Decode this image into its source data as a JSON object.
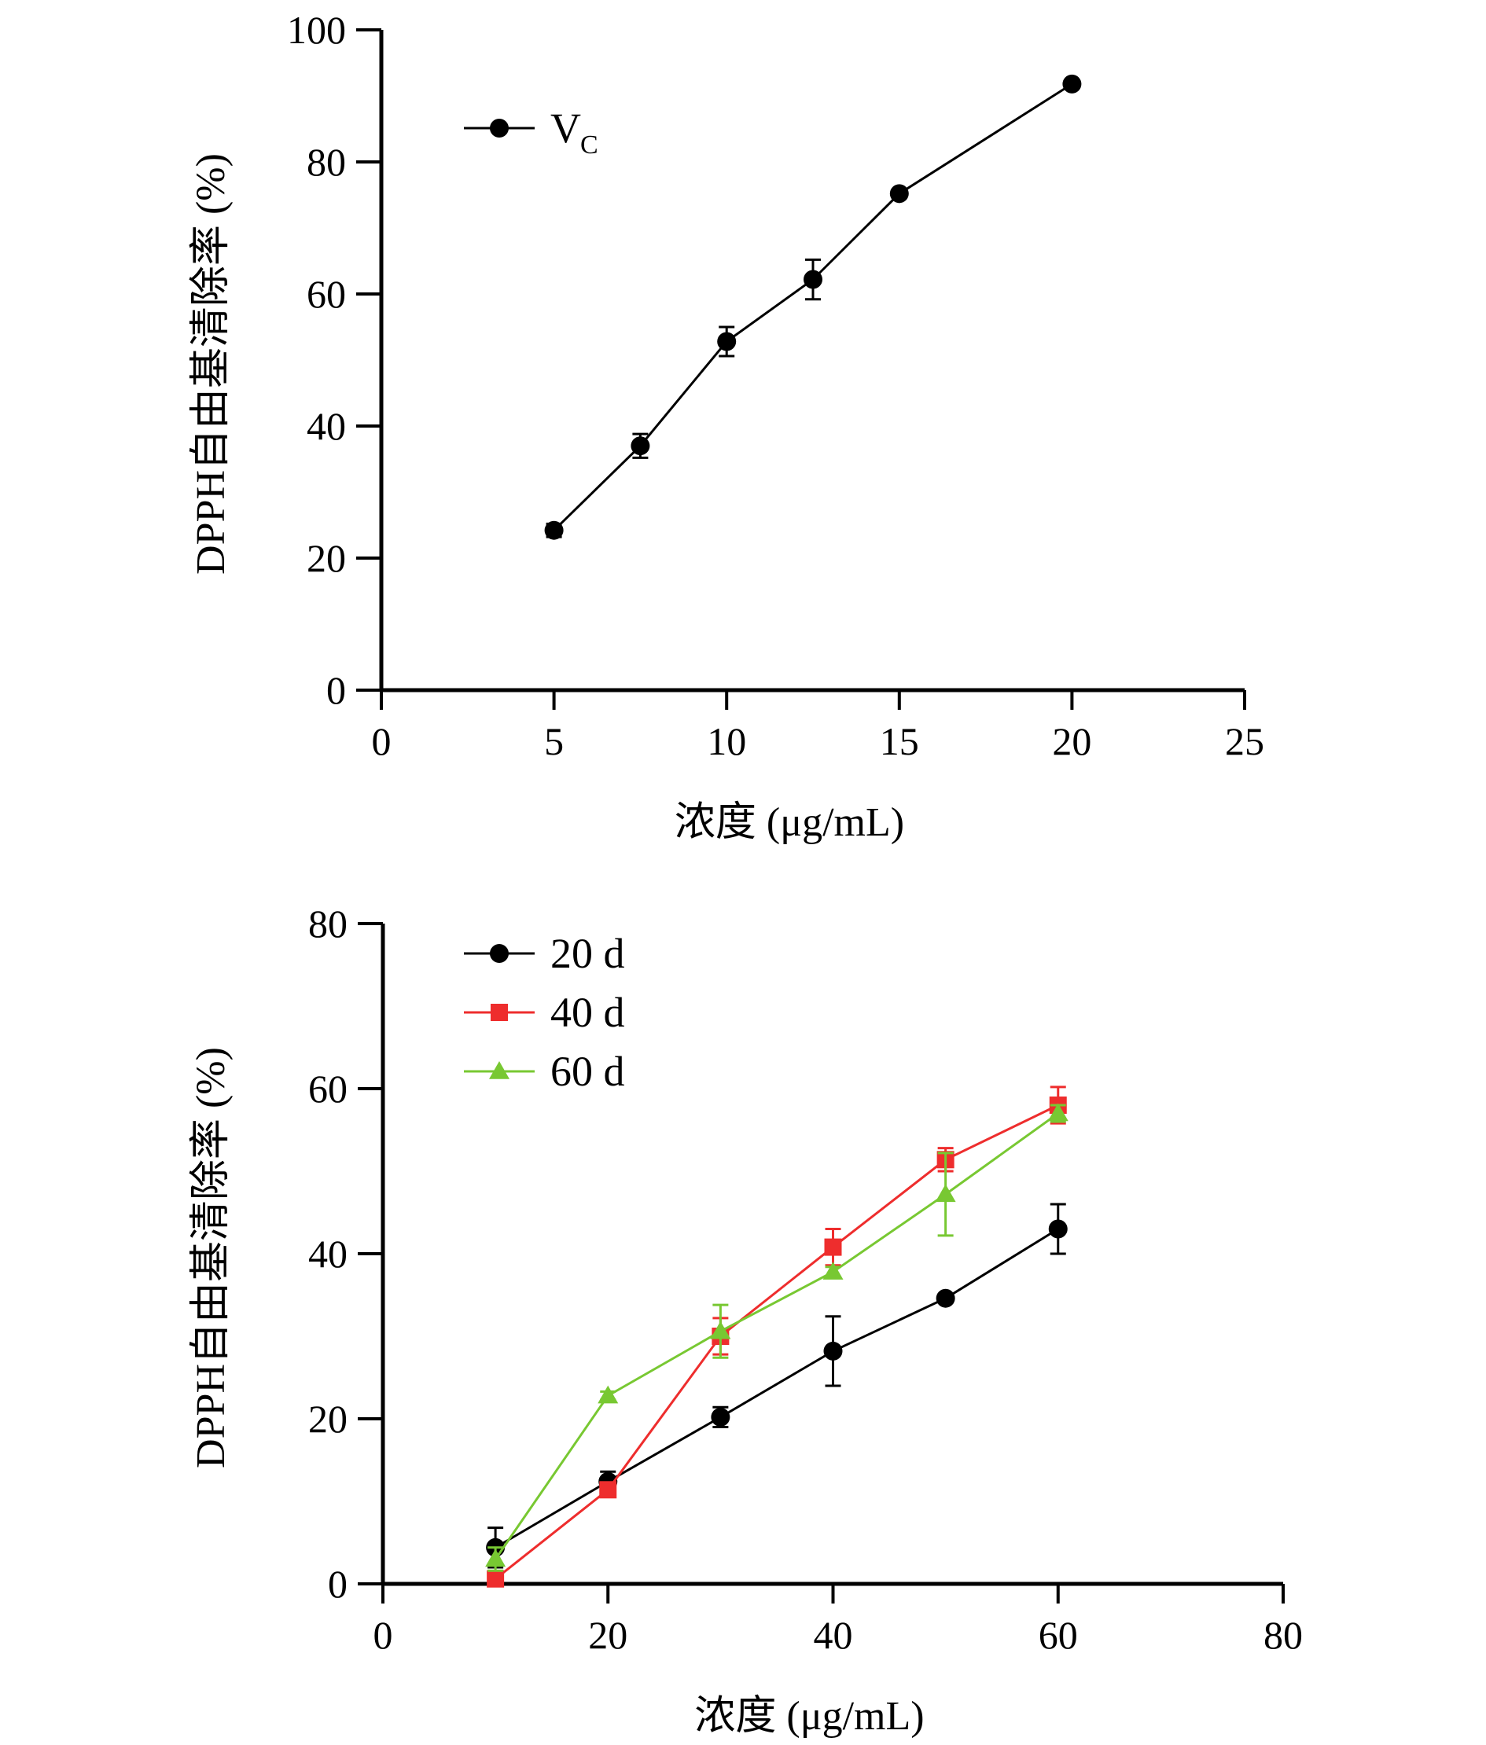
{
  "chart_data": [
    {
      "type": "line",
      "xlabel": "浓度 (μg/mL)",
      "ylabel": "DPPH自由基清除率 (%)",
      "xlim": [
        0,
        25
      ],
      "ylim": [
        0,
        100
      ],
      "xticks": [
        "0",
        "5",
        "10",
        "15",
        "20",
        "25"
      ],
      "yticks": [
        "0",
        "20",
        "40",
        "60",
        "80",
        "100"
      ],
      "legend_position": "top-left",
      "series": [
        {
          "name": "V",
          "name_sub": "C",
          "color": "#000000",
          "marker": "circle",
          "x": [
            5,
            7.5,
            10,
            12.5,
            15,
            20
          ],
          "values": [
            24.2,
            37.0,
            52.8,
            62.2,
            75.2,
            91.8
          ],
          "errors": [
            1.0,
            1.8,
            2.2,
            3.0,
            0.6,
            0.5
          ]
        }
      ]
    },
    {
      "type": "line",
      "xlabel": "浓度 (μg/mL)",
      "ylabel": "DPPH自由基清除率 (%)",
      "xlim": [
        0,
        80
      ],
      "ylim": [
        0,
        80
      ],
      "xticks": [
        "0",
        "20",
        "40",
        "60",
        "80"
      ],
      "yticks": [
        "0",
        "20",
        "40",
        "60",
        "80"
      ],
      "legend_position": "top-left",
      "series": [
        {
          "name": "20 d",
          "color": "#000000",
          "marker": "circle",
          "x": [
            10,
            20,
            30,
            40,
            50,
            60
          ],
          "values": [
            4.4,
            12.4,
            20.2,
            28.2,
            34.6,
            43.0
          ],
          "errors": [
            2.4,
            1.2,
            1.2,
            4.2,
            0.5,
            3.0
          ]
        },
        {
          "name": "40 d",
          "color": "#ee2d2d",
          "marker": "square",
          "x": [
            10,
            20,
            30,
            40,
            50,
            60
          ],
          "values": [
            0.6,
            11.4,
            30.0,
            40.8,
            51.4,
            58.0
          ],
          "errors": [
            0.4,
            0.6,
            2.2,
            2.2,
            1.4,
            2.2
          ]
        },
        {
          "name": "60 d",
          "color": "#78c832",
          "marker": "triangle",
          "x": [
            10,
            20,
            30,
            40,
            50,
            60
          ],
          "values": [
            3.0,
            22.8,
            30.6,
            37.8,
            47.2,
            57.0
          ],
          "errors": [
            1.4,
            0.5,
            3.2,
            0.6,
            5.0,
            1.0
          ]
        }
      ]
    }
  ]
}
